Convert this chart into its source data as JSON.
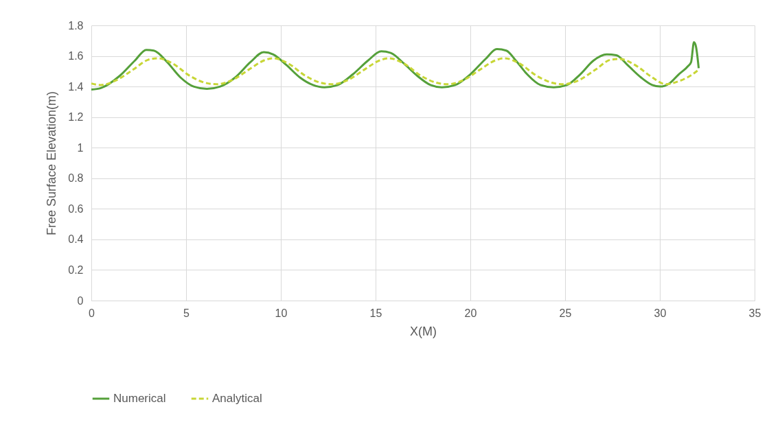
{
  "chart_data": {
    "type": "line",
    "xlabel": "X(M)",
    "ylabel": "Free Surface Elevation(m)",
    "xlim": [
      0,
      35
    ],
    "xticks": [
      0,
      5,
      10,
      15,
      20,
      25,
      30,
      35
    ],
    "ylim": [
      0,
      1.8
    ],
    "yticks": [
      {
        "value": 0,
        "label": "0"
      },
      0.2,
      0.4,
      0.6,
      0.8,
      {
        "value": 1,
        "label": "1"
      },
      1.2,
      1.4,
      1.6,
      1.8
    ],
    "grid": true,
    "legend": "bottom",
    "series": [
      {
        "name": "Numerical",
        "color": "#55a03a",
        "line_style": "solid",
        "x": [
          0,
          0.5,
          1.5,
          2.3,
          2.9,
          3.3,
          4.0,
          4.7,
          5.4,
          6.1,
          6.8,
          7.6,
          8.4,
          9.1,
          9.6,
          10.3,
          11.0,
          11.7,
          12.3,
          13.0,
          13.8,
          14.6,
          15.3,
          15.8,
          16.5,
          17.2,
          17.9,
          18.5,
          19.2,
          20.0,
          20.8,
          21.4,
          21.9,
          22.4,
          23.0,
          23.7,
          24.4,
          25.1,
          25.8,
          26.5,
          27.2,
          27.7,
          28.3,
          29.0,
          29.6,
          30.0,
          30.5,
          31.0,
          31.5,
          31.65,
          31.8,
          31.9,
          32.05
        ],
        "values": [
          1.38,
          1.39,
          1.47,
          1.57,
          1.64,
          1.635,
          1.56,
          1.46,
          1.4,
          1.385,
          1.4,
          1.46,
          1.56,
          1.625,
          1.61,
          1.54,
          1.46,
          1.41,
          1.395,
          1.41,
          1.48,
          1.57,
          1.63,
          1.62,
          1.55,
          1.47,
          1.41,
          1.395,
          1.41,
          1.48,
          1.58,
          1.645,
          1.635,
          1.57,
          1.48,
          1.41,
          1.395,
          1.41,
          1.48,
          1.57,
          1.61,
          1.605,
          1.54,
          1.46,
          1.41,
          1.4,
          1.42,
          1.48,
          1.535,
          1.56,
          1.69,
          1.665,
          1.52
        ]
      },
      {
        "name": "Analytical",
        "color": "#c8d636",
        "line_style": "dashed",
        "x": [
          0,
          0.5,
          1.3,
          2.2,
          3.0,
          3.5,
          4.3,
          5.2,
          6.0,
          6.6,
          7.4,
          8.3,
          9.1,
          9.6,
          10.4,
          11.3,
          12.1,
          12.7,
          13.5,
          14.4,
          15.2,
          15.7,
          16.5,
          17.4,
          18.2,
          18.8,
          19.6,
          20.5,
          21.3,
          21.8,
          22.6,
          23.5,
          24.3,
          24.9,
          25.7,
          26.6,
          27.4,
          27.9,
          28.7,
          29.6,
          30.3,
          31.0,
          31.6,
          32.05
        ],
        "values": [
          1.42,
          1.41,
          1.44,
          1.51,
          1.575,
          1.585,
          1.55,
          1.47,
          1.425,
          1.415,
          1.44,
          1.51,
          1.57,
          1.585,
          1.55,
          1.47,
          1.425,
          1.415,
          1.44,
          1.51,
          1.57,
          1.585,
          1.55,
          1.47,
          1.425,
          1.415,
          1.44,
          1.51,
          1.57,
          1.585,
          1.55,
          1.47,
          1.425,
          1.415,
          1.44,
          1.51,
          1.575,
          1.58,
          1.54,
          1.46,
          1.415,
          1.435,
          1.47,
          1.51
        ]
      }
    ]
  }
}
